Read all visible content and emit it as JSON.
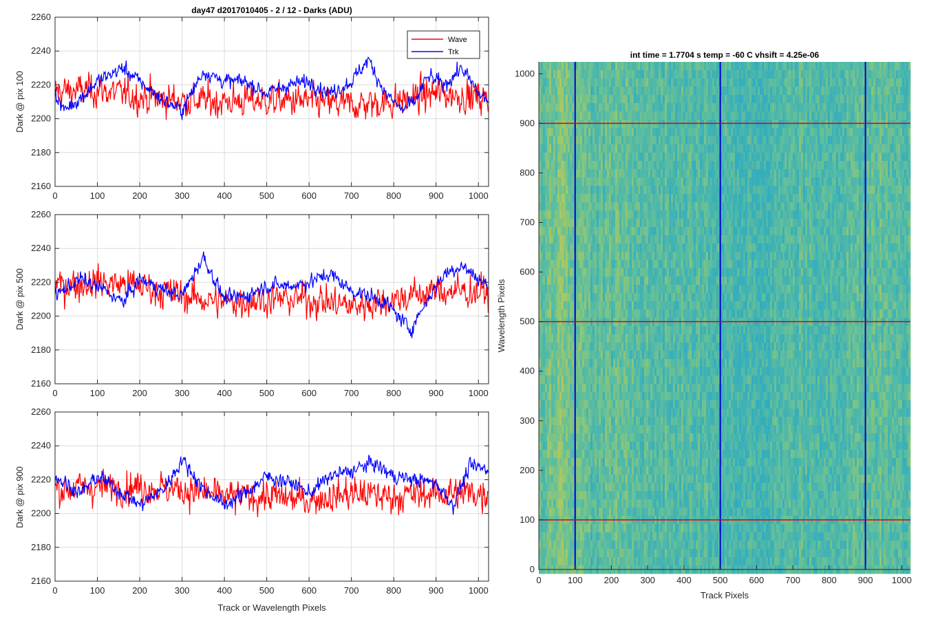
{
  "chart_data": [
    {
      "type": "line",
      "title": "day47 d2017010405 - 2 / 12 - Darks (ADU)",
      "xlabel": "",
      "ylabel": "Dark @ pix 100",
      "xlim": [
        0,
        1024
      ],
      "ylim": [
        2160,
        2260
      ],
      "xticks": [
        0,
        100,
        200,
        300,
        400,
        500,
        600,
        700,
        800,
        900,
        1000
      ],
      "yticks": [
        2160,
        2180,
        2200,
        2220,
        2240,
        2260
      ],
      "grid": true,
      "legend": "top-right",
      "series": [
        {
          "name": "Wave",
          "color": "#ff0000",
          "mean": 2213,
          "noise": 9,
          "drift": [
            [
              0,
              2216
            ],
            [
              100,
              2217
            ],
            [
              200,
              2213
            ],
            [
              300,
              2211
            ],
            [
              400,
              2210
            ],
            [
              500,
              2211
            ],
            [
              600,
              2210
            ],
            [
              700,
              2208
            ],
            [
              800,
              2210
            ],
            [
              900,
              2215
            ],
            [
              1024,
              2212
            ]
          ]
        },
        {
          "name": "Trk",
          "color": "#0000ff",
          "mean": 2218,
          "noise": 4,
          "drift": [
            [
              0,
              2215
            ],
            [
              20,
              2205
            ],
            [
              60,
              2212
            ],
            [
              100,
              2222
            ],
            [
              160,
              2230
            ],
            [
              200,
              2222
            ],
            [
              260,
              2210
            ],
            [
              300,
              2205
            ],
            [
              350,
              2228
            ],
            [
              400,
              2222
            ],
            [
              450,
              2222
            ],
            [
              500,
              2215
            ],
            [
              550,
              2220
            ],
            [
              600,
              2222
            ],
            [
              650,
              2215
            ],
            [
              700,
              2222
            ],
            [
              740,
              2235
            ],
            [
              780,
              2215
            ],
            [
              820,
              2205
            ],
            [
              850,
              2210
            ],
            [
              880,
              2225
            ],
            [
              920,
              2220
            ],
            [
              960,
              2230
            ],
            [
              1000,
              2215
            ],
            [
              1024,
              2210
            ]
          ]
        }
      ]
    },
    {
      "type": "line",
      "title": "",
      "xlabel": "",
      "ylabel": "Dark @ pix 500",
      "xlim": [
        0,
        1024
      ],
      "ylim": [
        2160,
        2260
      ],
      "xticks": [
        0,
        100,
        200,
        300,
        400,
        500,
        600,
        700,
        800,
        900,
        1000
      ],
      "yticks": [
        2160,
        2180,
        2200,
        2220,
        2240,
        2260
      ],
      "grid": true,
      "series": [
        {
          "name": "Wave",
          "color": "#ff0000",
          "mean": 2213,
          "noise": 9,
          "drift": [
            [
              0,
              2218
            ],
            [
              100,
              2220
            ],
            [
              200,
              2218
            ],
            [
              300,
              2212
            ],
            [
              400,
              2208
            ],
            [
              500,
              2210
            ],
            [
              600,
              2210
            ],
            [
              700,
              2206
            ],
            [
              800,
              2210
            ],
            [
              900,
              2215
            ],
            [
              1024,
              2214
            ]
          ]
        },
        {
          "name": "Trk",
          "color": "#0000ff",
          "mean": 2218,
          "noise": 4,
          "drift": [
            [
              0,
              2212
            ],
            [
              60,
              2222
            ],
            [
              120,
              2215
            ],
            [
              160,
              2208
            ],
            [
              200,
              2222
            ],
            [
              260,
              2215
            ],
            [
              300,
              2212
            ],
            [
              350,
              2235
            ],
            [
              400,
              2210
            ],
            [
              450,
              2212
            ],
            [
              500,
              2218
            ],
            [
              560,
              2218
            ],
            [
              600,
              2220
            ],
            [
              650,
              2225
            ],
            [
              700,
              2215
            ],
            [
              740,
              2212
            ],
            [
              780,
              2208
            ],
            [
              840,
              2192
            ],
            [
              880,
              2210
            ],
            [
              920,
              2225
            ],
            [
              960,
              2230
            ],
            [
              1000,
              2222
            ],
            [
              1024,
              2218
            ]
          ]
        }
      ]
    },
    {
      "type": "line",
      "title": "",
      "xlabel": "Track or Wavelength Pixels",
      "ylabel": "Dark @ pix 900",
      "xlim": [
        0,
        1024
      ],
      "ylim": [
        2160,
        2260
      ],
      "xticks": [
        0,
        100,
        200,
        300,
        400,
        500,
        600,
        700,
        800,
        900,
        1000
      ],
      "yticks": [
        2160,
        2180,
        2200,
        2220,
        2240,
        2260
      ],
      "grid": true,
      "series": [
        {
          "name": "Wave",
          "color": "#ff0000",
          "mean": 2213,
          "noise": 9,
          "drift": [
            [
              0,
              2214
            ],
            [
              100,
              2216
            ],
            [
              200,
              2216
            ],
            [
              300,
              2214
            ],
            [
              400,
              2210
            ],
            [
              500,
              2210
            ],
            [
              600,
              2208
            ],
            [
              700,
              2212
            ],
            [
              800,
              2210
            ],
            [
              900,
              2212
            ],
            [
              1024,
              2212
            ]
          ]
        },
        {
          "name": "Trk",
          "color": "#0000ff",
          "mean": 2218,
          "noise": 4,
          "drift": [
            [
              0,
              2222
            ],
            [
              60,
              2212
            ],
            [
              100,
              2222
            ],
            [
              160,
              2212
            ],
            [
              200,
              2205
            ],
            [
              260,
              2215
            ],
            [
              300,
              2232
            ],
            [
              350,
              2215
            ],
            [
              400,
              2205
            ],
            [
              450,
              2212
            ],
            [
              500,
              2222
            ],
            [
              560,
              2218
            ],
            [
              600,
              2212
            ],
            [
              650,
              2222
            ],
            [
              700,
              2225
            ],
            [
              750,
              2230
            ],
            [
              800,
              2222
            ],
            [
              850,
              2220
            ],
            [
              900,
              2218
            ],
            [
              940,
              2205
            ],
            [
              980,
              2228
            ],
            [
              1024,
              2226
            ]
          ]
        }
      ]
    },
    {
      "type": "heatmap",
      "title": "int time = 1.7704 s   temp = -60 C   vhsift = 4.25e-06",
      "xlabel": "Track Pixels",
      "ylabel": "Wavelength Pixels",
      "xlim": [
        0,
        1024
      ],
      "ylim": [
        0,
        1024
      ],
      "xticks": [
        0,
        100,
        200,
        300,
        400,
        500,
        600,
        700,
        800,
        900,
        1000
      ],
      "yticks": [
        0,
        100,
        200,
        300,
        400,
        500,
        600,
        700,
        800,
        900,
        1000
      ],
      "colormap": [
        "#27a8c9",
        "#3bb0b8",
        "#61bf9c",
        "#9cc86b",
        "#c6c85a"
      ],
      "vertical_lines": {
        "x": [
          100,
          500,
          900
        ],
        "color": "#0000cc"
      },
      "horizontal_lines": {
        "y": [
          100,
          500,
          900
        ],
        "color": "#e00000"
      }
    }
  ]
}
